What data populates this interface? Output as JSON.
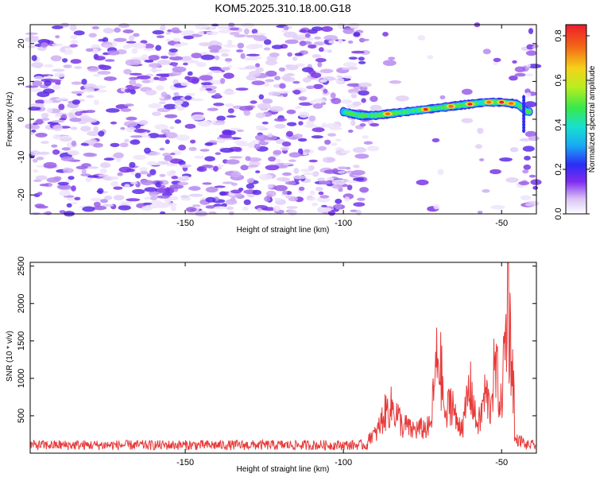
{
  "title": "KOM5.2025.310.18.00.G18",
  "chart_data": [
    {
      "type": "heatmap",
      "name": "spectrogram",
      "xlabel": "Height of straight line (km)",
      "ylabel": "Frequency (Hz)",
      "xlim": [
        -199,
        -39
      ],
      "ylim": [
        -25,
        25
      ],
      "x_ticks": [
        -150,
        -100,
        -50
      ],
      "y_ticks": [
        -20,
        -10,
        0,
        10,
        20
      ],
      "signal_track": {
        "x": [
          -100,
          -95,
          -90,
          -85,
          -80,
          -75,
          -70,
          -65,
          -60,
          -55,
          -50,
          -45,
          -42
        ],
        "y_hz": [
          2,
          1,
          1,
          1.5,
          2,
          2.5,
          3,
          3.5,
          4,
          4.5,
          4.5,
          4,
          2
        ]
      },
      "colorbar": {
        "label": "Normalized spectral amplitude",
        "range": [
          0.0,
          0.85
        ],
        "ticks": [
          "0.0",
          "0.2",
          "0.4",
          "0.6",
          "0.8"
        ]
      }
    },
    {
      "type": "line",
      "name": "snr",
      "xlabel": "Height of straight line (km)",
      "ylabel": "SNR (10 * v/v)",
      "xlim": [
        -199,
        -39
      ],
      "ylim": [
        0,
        2550
      ],
      "x_ticks": [
        -150,
        -100,
        -50
      ],
      "y_ticks": [
        500,
        1000,
        1500,
        2000,
        2500
      ],
      "color": "#e83a3a",
      "baseline": 130,
      "noise_amplitude": 90,
      "peaks": [
        {
          "x": -85,
          "y": 900
        },
        {
          "x": -80,
          "y": 550
        },
        {
          "x": -70,
          "y": 1850
        },
        {
          "x": -66,
          "y": 1050
        },
        {
          "x": -60,
          "y": 1250
        },
        {
          "x": -55,
          "y": 1150
        },
        {
          "x": -52,
          "y": 1600
        },
        {
          "x": -48,
          "y": 2550
        },
        {
          "x": -44,
          "y": 250
        }
      ]
    }
  ]
}
